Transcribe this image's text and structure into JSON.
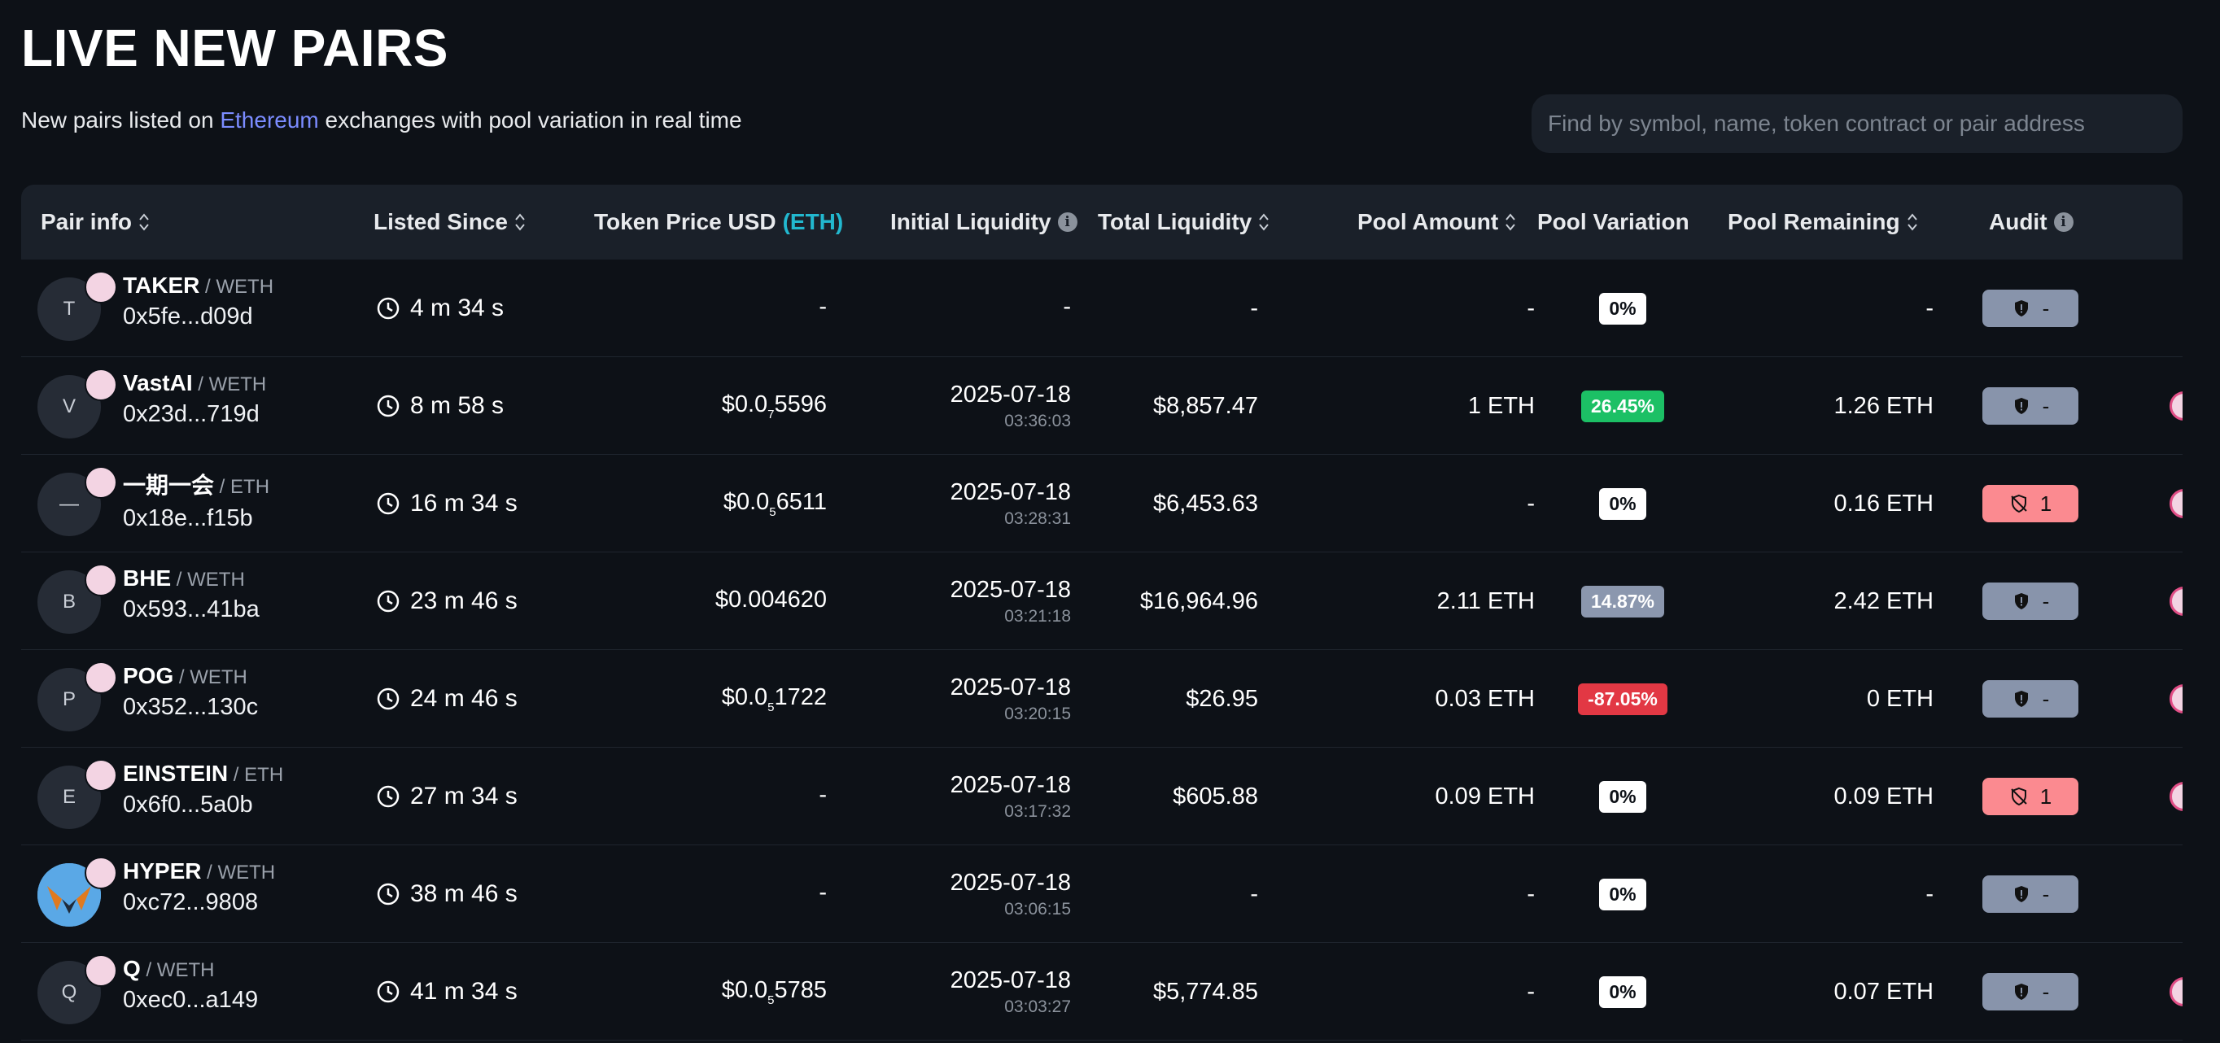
{
  "header": {
    "title": "LIVE NEW PAIRS",
    "subtitle_before": "New pairs listed on ",
    "subtitle_link": "Ethereum",
    "subtitle_after": " exchanges with pool variation in real time"
  },
  "search": {
    "placeholder": "Find by symbol, name, token contract or pair address",
    "value": ""
  },
  "columns": {
    "pair_info": "Pair info",
    "listed_since": "Listed Since",
    "token_price": "Token Price USD",
    "token_price_unit": "(ETH)",
    "initial_liquidity": "Initial Liquidity",
    "total_liquidity": "Total Liquidity",
    "pool_amount": "Pool Amount",
    "pool_variation": "Pool Variation",
    "pool_remaining": "Pool Remaining",
    "audit": "Audit"
  },
  "colors": {
    "background": "#0d1117",
    "header_bg": "#1a2029",
    "link": "#7b8cff",
    "eth_accent": "#22b8cf",
    "positive": "#1cc065",
    "negative": "#e23844",
    "audit_neutral": "#8894ab",
    "audit_warning": "#fb8a90"
  },
  "rows": [
    {
      "avatar": "T",
      "avatar_type": "letter",
      "symbol": "TAKER",
      "quote": " / WETH",
      "address": "0x5fe...d09d",
      "since": "4 m 34 s",
      "price": {
        "prefix": "-",
        "sub": "",
        "suffix": ""
      },
      "init_date": "-",
      "init_time": "",
      "total": "-",
      "amount": "-",
      "variation": "0%",
      "variation_style": "white",
      "remaining": "-",
      "audit_icon": "shield-alert-icon",
      "audit_text": "-",
      "audit_style": "grey",
      "has_edge_icon": false
    },
    {
      "avatar": "V",
      "avatar_type": "letter",
      "symbol": "VastAI",
      "quote": " / WETH",
      "address": "0x23d...719d",
      "since": "8 m 58 s",
      "price": {
        "prefix": "$0.0",
        "sub": "7",
        "suffix": "5596"
      },
      "init_date": "2025-07-18",
      "init_time": "03:36:03",
      "total": "$8,857.47",
      "amount": "1 ETH",
      "variation": "26.45%",
      "variation_style": "green",
      "remaining": "1.26 ETH",
      "audit_icon": "shield-alert-icon",
      "audit_text": "-",
      "audit_style": "grey",
      "has_edge_icon": true
    },
    {
      "avatar": "—",
      "avatar_type": "letter",
      "symbol": "一期一会",
      "quote": " / ETH",
      "address": "0x18e...f15b",
      "since": "16 m 34 s",
      "price": {
        "prefix": "$0.0",
        "sub": "5",
        "suffix": "6511"
      },
      "init_date": "2025-07-18",
      "init_time": "03:28:31",
      "total": "$6,453.63",
      "amount": "-",
      "variation": "0%",
      "variation_style": "white",
      "remaining": "0.16 ETH",
      "audit_icon": "shield-off-icon",
      "audit_text": "1",
      "audit_style": "red",
      "has_edge_icon": true
    },
    {
      "avatar": "B",
      "avatar_type": "letter",
      "symbol": "BHE",
      "quote": " / WETH",
      "address": "0x593...41ba",
      "since": "23 m 46 s",
      "price": {
        "prefix": "$0.004620",
        "sub": "",
        "suffix": ""
      },
      "init_date": "2025-07-18",
      "init_time": "03:21:18",
      "total": "$16,964.96",
      "amount": "2.11 ETH",
      "variation": "14.87%",
      "variation_style": "grey",
      "remaining": "2.42 ETH",
      "audit_icon": "shield-alert-icon",
      "audit_text": "-",
      "audit_style": "grey",
      "has_edge_icon": true
    },
    {
      "avatar": "P",
      "avatar_type": "letter",
      "symbol": "POG",
      "quote": " / WETH",
      "address": "0x352...130c",
      "since": "24 m 46 s",
      "price": {
        "prefix": "$0.0",
        "sub": "5",
        "suffix": "1722"
      },
      "init_date": "2025-07-18",
      "init_time": "03:20:15",
      "total": "$26.95",
      "amount": "0.03 ETH",
      "variation": "-87.05%",
      "variation_style": "red",
      "remaining": "0 ETH",
      "audit_icon": "shield-alert-icon",
      "audit_text": "-",
      "audit_style": "grey",
      "has_edge_icon": true
    },
    {
      "avatar": "E",
      "avatar_type": "letter",
      "symbol": "EINSTEIN",
      "quote": " / ETH",
      "address": "0x6f0...5a0b",
      "since": "27 m 34 s",
      "price": {
        "prefix": "-",
        "sub": "",
        "suffix": ""
      },
      "init_date": "2025-07-18",
      "init_time": "03:17:32",
      "total": "$605.88",
      "amount": "0.09 ETH",
      "variation": "0%",
      "variation_style": "white",
      "remaining": "0.09 ETH",
      "audit_icon": "shield-off-icon",
      "audit_text": "1",
      "audit_style": "red",
      "has_edge_icon": true
    },
    {
      "avatar": "",
      "avatar_type": "hyper",
      "symbol": "HYPER",
      "quote": " / WETH",
      "address": "0xc72...9808",
      "since": "38 m 46 s",
      "price": {
        "prefix": "-",
        "sub": "",
        "suffix": ""
      },
      "init_date": "2025-07-18",
      "init_time": "03:06:15",
      "total": "-",
      "amount": "-",
      "variation": "0%",
      "variation_style": "white",
      "remaining": "-",
      "audit_icon": "shield-alert-icon",
      "audit_text": "-",
      "audit_style": "grey",
      "has_edge_icon": false
    },
    {
      "avatar": "Q",
      "avatar_type": "letter",
      "symbol": "Q",
      "quote": " / WETH",
      "address": "0xec0...a149",
      "since": "41 m 34 s",
      "price": {
        "prefix": "$0.0",
        "sub": "5",
        "suffix": "5785"
      },
      "init_date": "2025-07-18",
      "init_time": "03:03:27",
      "total": "$5,774.85",
      "amount": "-",
      "variation": "0%",
      "variation_style": "white",
      "remaining": "0.07 ETH",
      "audit_icon": "shield-alert-icon",
      "audit_text": "-",
      "audit_style": "grey",
      "has_edge_icon": true
    }
  ]
}
